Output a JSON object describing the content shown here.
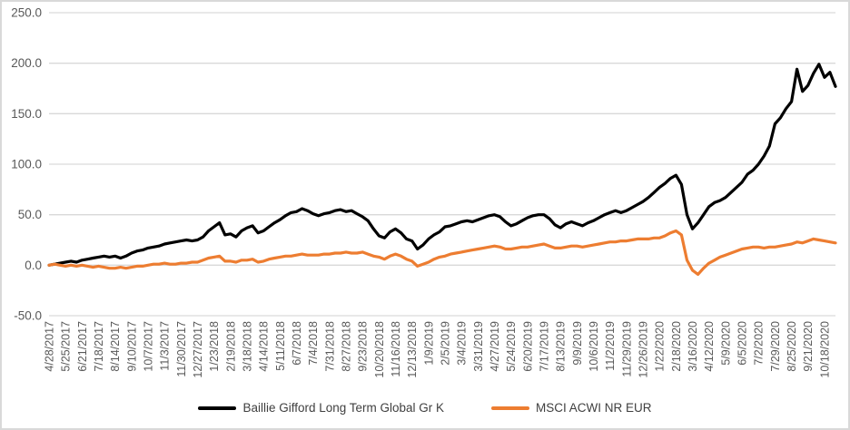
{
  "styles": {
    "background": "#ffffff",
    "frame_border_color": "#d9d9d9",
    "grid_color": "#d9d9d9",
    "tick_label_color": "#595959",
    "legend_text_color": "#3f3f3f"
  },
  "chart_data": {
    "type": "line",
    "title": "",
    "xlabel": "",
    "ylabel": "",
    "grid": true,
    "legend_position": "bottom",
    "ylim": [
      -50,
      250
    ],
    "y_tick_values": [
      250,
      200,
      150,
      100,
      50,
      0,
      -50
    ],
    "y_tick_labels": [
      "250.0",
      "200.0",
      "150.0",
      "100.0",
      "50.0",
      "0.0",
      "-50.0"
    ],
    "x_tick_labels": [
      "4/28/2017",
      "5/25/2017",
      "6/21/2017",
      "7/18/2017",
      "8/14/2017",
      "9/10/2017",
      "10/7/2017",
      "11/3/2017",
      "11/30/2017",
      "12/27/2017",
      "1/23/2018",
      "2/19/2018",
      "3/18/2018",
      "4/14/2018",
      "5/11/2018",
      "6/7/2018",
      "7/4/2018",
      "7/31/2018",
      "8/27/2018",
      "9/23/2018",
      "10/20/2018",
      "11/16/2018",
      "12/13/2018",
      "1/9/2019",
      "2/5/2019",
      "3/4/2019",
      "3/31/2019",
      "4/27/2019",
      "5/24/2019",
      "6/20/2019",
      "7/17/2019",
      "8/13/2019",
      "9/9/2019",
      "10/6/2019",
      "11/2/2019",
      "11/29/2019",
      "12/26/2019",
      "1/22/2020",
      "2/18/2020",
      "3/16/2020",
      "4/12/2020",
      "5/9/2020",
      "6/5/2020",
      "7/2/2020",
      "7/29/2020",
      "8/25/2020",
      "9/21/2020",
      "10/18/2020"
    ],
    "points_per_tick_interval": 3,
    "series": [
      {
        "name": "Baillie Gifford Long Term Global Gr K",
        "color": "#000000",
        "values": [
          0,
          1,
          2,
          3,
          4,
          3,
          5,
          6,
          7,
          8,
          9,
          8,
          9,
          7,
          9,
          12,
          14,
          15,
          17,
          18,
          19,
          21,
          22,
          23,
          24,
          25,
          24,
          25,
          28,
          34,
          38,
          42,
          30,
          31,
          28,
          34,
          37,
          39,
          32,
          34,
          38,
          42,
          45,
          49,
          52,
          53,
          56,
          54,
          51,
          49,
          51,
          52,
          54,
          55,
          53,
          54,
          51,
          48,
          44,
          36,
          29,
          27,
          33,
          36,
          32,
          26,
          24,
          16,
          20,
          26,
          30,
          33,
          38,
          39,
          41,
          43,
          44,
          43,
          45,
          47,
          49,
          50,
          48,
          43,
          39,
          41,
          44,
          47,
          49,
          50,
          50,
          46,
          40,
          37,
          41,
          43,
          41,
          39,
          42,
          44,
          47,
          50,
          52,
          54,
          52,
          54,
          57,
          60,
          63,
          67,
          72,
          77,
          81,
          86,
          89,
          80,
          50,
          36,
          42,
          50,
          58,
          62,
          64,
          67,
          72,
          77,
          82,
          90,
          94,
          100,
          108,
          118,
          140,
          146,
          155,
          162,
          194,
          172,
          178,
          190,
          199,
          186,
          191,
          177
        ]
      },
      {
        "name": "MSCI ACWI NR EUR",
        "color": "#ED7D31",
        "values": [
          0,
          1,
          0,
          -1,
          0,
          -1,
          0,
          -1,
          -2,
          -1,
          -2,
          -3,
          -3,
          -2,
          -3,
          -2,
          -1,
          -1,
          0,
          1,
          1,
          2,
          1,
          1,
          2,
          2,
          3,
          3,
          5,
          7,
          8,
          9,
          4,
          4,
          3,
          5,
          5,
          6,
          3,
          4,
          6,
          7,
          8,
          9,
          9,
          10,
          11,
          10,
          10,
          10,
          11,
          11,
          12,
          12,
          13,
          12,
          12,
          13,
          11,
          9,
          8,
          6,
          9,
          11,
          9,
          6,
          4,
          -1,
          1,
          3,
          6,
          8,
          9,
          11,
          12,
          13,
          14,
          15,
          16,
          17,
          18,
          19,
          18,
          16,
          16,
          17,
          18,
          18,
          19,
          20,
          21,
          19,
          17,
          17,
          18,
          19,
          19,
          18,
          19,
          20,
          21,
          22,
          23,
          23,
          24,
          24,
          25,
          26,
          26,
          26,
          27,
          27,
          29,
          32,
          34,
          30,
          5,
          -5,
          -9,
          -3,
          2,
          5,
          8,
          10,
          12,
          14,
          16,
          17,
          18,
          18,
          17,
          18,
          18,
          19,
          20,
          21,
          23,
          22,
          24,
          26,
          25,
          24,
          23,
          22
        ]
      }
    ]
  }
}
